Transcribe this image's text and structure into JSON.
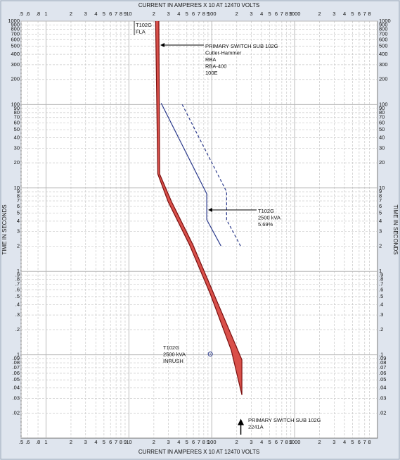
{
  "chart_data": {
    "type": "line",
    "xlabel": "CURRENT IN AMPERES X 10 AT 12470 VOLTS",
    "ylabel": "TIME IN SECONDS",
    "xlog": true,
    "ylog": true,
    "grid": true,
    "xlim": [
      0.5,
      10000
    ],
    "ylim": [
      0.01,
      1000
    ],
    "xticks": [
      {
        "value": 0.5,
        "label": ".5"
      },
      {
        "value": 0.6,
        "label": ".6"
      },
      {
        "value": 0.8,
        "label": ".8"
      },
      1,
      2,
      3,
      4,
      5,
      6,
      7,
      8,
      9,
      10,
      {
        "value": 20,
        "label": "2"
      },
      {
        "value": 30,
        "label": "3"
      },
      {
        "value": 40,
        "label": "4"
      },
      {
        "value": 50,
        "label": "5"
      },
      {
        "value": 60,
        "label": "6"
      },
      {
        "value": 70,
        "label": "7"
      },
      {
        "value": 80,
        "label": "8"
      },
      {
        "value": 90,
        "label": "9"
      },
      100,
      {
        "value": 200,
        "label": "2"
      },
      {
        "value": 300,
        "label": "3"
      },
      {
        "value": 400,
        "label": "4"
      },
      {
        "value": 500,
        "label": "5"
      },
      {
        "value": 600,
        "label": "6"
      },
      {
        "value": 700,
        "label": "7"
      },
      {
        "value": 800,
        "label": "8"
      },
      {
        "value": 900,
        "label": "9"
      },
      1000,
      {
        "value": 2000,
        "label": "2"
      },
      {
        "value": 3000,
        "label": "3"
      },
      {
        "value": 4000,
        "label": "4"
      },
      {
        "value": 5000,
        "label": "5"
      },
      {
        "value": 6000,
        "label": "6"
      },
      {
        "value": 7000,
        "label": "7"
      },
      {
        "value": 8000,
        "label": "8"
      }
    ],
    "yticks": [
      1000,
      900,
      800,
      700,
      600,
      500,
      400,
      300,
      200,
      100,
      90,
      80,
      70,
      60,
      50,
      40,
      30,
      20,
      10,
      9,
      8,
      7,
      6,
      5,
      4,
      3,
      2,
      1,
      {
        "value": 0.9,
        "label": ".9"
      },
      {
        "value": 0.8,
        "label": ".8"
      },
      {
        "value": 0.7,
        "label": ".7"
      },
      {
        "value": 0.6,
        "label": ".6"
      },
      {
        "value": 0.5,
        "label": ".5"
      },
      {
        "value": 0.4,
        "label": ".4"
      },
      {
        "value": 0.3,
        "label": ".3"
      },
      {
        "value": 0.2,
        "label": ".2"
      },
      {
        "value": 0.1,
        "label": ".1"
      },
      {
        "value": 0.09,
        "label": ".09"
      },
      {
        "value": 0.08,
        "label": ".08"
      },
      {
        "value": 0.07,
        "label": ".07"
      },
      {
        "value": 0.06,
        "label": ".06"
      },
      {
        "value": 0.05,
        "label": ".05"
      },
      {
        "value": 0.04,
        "label": ".04"
      },
      {
        "value": 0.03,
        "label": ".03"
      },
      {
        "value": 0.02,
        "label": ".02"
      }
    ],
    "series": [
      {
        "color": "#7a1010",
        "dash": false,
        "x": [
          21,
          22.3,
          29.8,
          53.6,
          96,
          172,
          231
        ],
        "values": [
          1000,
          14.7,
          6.8,
          2.1,
          0.535,
          0.113,
          0.033
        ]
      },
      {
        "color": "#7a1010",
        "dash": false,
        "x": [
          23,
          23.5,
          32.8,
          59,
          106,
          231,
          231
        ],
        "values": [
          1000,
          14.7,
          6.8,
          2.1,
          0.535,
          0.087,
          0.033
        ]
      },
      {
        "color": "#2b3a8c",
        "dash": false,
        "x": [
          24.5,
          87,
          87,
          129
        ],
        "values": [
          104,
          8.5,
          4.16,
          2.02
        ]
      },
      {
        "color": "#2b3a8c",
        "dash": true,
        "x": [
          44,
          151,
          151,
          222
        ],
        "values": [
          100,
          9,
          4.16,
          2.02
        ]
      }
    ],
    "band": {
      "series": [
        0,
        1
      ],
      "color": "#d9504a"
    },
    "points": [
      {
        "x": 96,
        "y": 0.102,
        "color": "#2b3a8c"
      }
    ],
    "annotations": [
      {
        "lines": [
          "T102G",
          "FLA"
        ]
      },
      {
        "lines": [
          "PRIMARY SWITCH SUB 102G",
          "Cutler-Hammer",
          "RBA",
          "RBA-400",
          "100E"
        ]
      },
      {
        "lines": [
          "T102G",
          "2500 kVA",
          "5.69%"
        ]
      },
      {
        "lines": [
          "T102G",
          "2500 kVA",
          "INRUSH"
        ]
      },
      {
        "lines": [
          "PRIMARY SWITCH SUB 102G",
          "2241A"
        ],
        "x": 224.1
      }
    ]
  }
}
